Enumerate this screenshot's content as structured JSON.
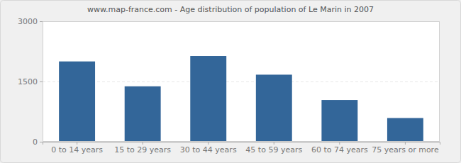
{
  "chart_data": {
    "type": "bar",
    "title": "www.map-france.com - Age distribution of population of Le Marin in 2007",
    "categories": [
      "0 to 14 years",
      "15 to 29 years",
      "30 to 44 years",
      "45 to 59 years",
      "60 to 74 years",
      "75 years or more"
    ],
    "values": [
      2000,
      1380,
      2135,
      1670,
      1040,
      590
    ],
    "color": "#336699",
    "ylim": [
      0,
      3000
    ],
    "yticks": [
      0,
      1500,
      3000
    ],
    "grid": true
  }
}
